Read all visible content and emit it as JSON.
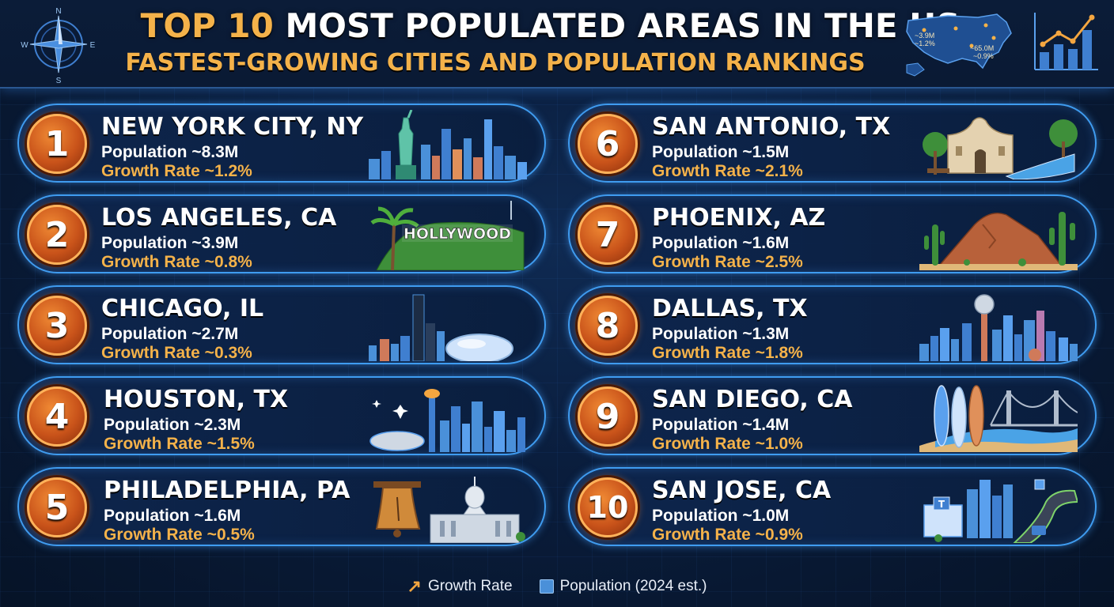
{
  "header": {
    "title_accent": "TOP 10",
    "title_rest": " MOST POPULATED AREAS IN THE US:",
    "subtitle": "FASTEST-GROWING CITIES AND POPULATION RANKINGS",
    "compass": {
      "n": "N",
      "s": "S",
      "e": "E",
      "w": "W"
    },
    "map_labels": {
      "left_pop": "~3.9M",
      "left_growth": "~1.2%",
      "right_pop": "~65.0M",
      "right_growth": "~0.9%"
    },
    "icons": [
      "compass-icon",
      "us-map-icon",
      "bar-chart-icon"
    ]
  },
  "cities": [
    {
      "rank": "1",
      "name": "NEW YORK CITY, NY",
      "population": "Population ~8.3M",
      "growth": "Growth Rate ~1.2%",
      "icon": "statue-of-liberty-skyline-icon"
    },
    {
      "rank": "2",
      "name": "LOS ANGELES, CA",
      "population": "Population ~3.9M",
      "growth": "Growth Rate ~0.8%",
      "icon": "hollywood-sign-icon",
      "sign_text": "HOLLYWOOD"
    },
    {
      "rank": "3",
      "name": "CHICAGO, IL",
      "population": "Population ~2.7M",
      "growth": "Growth Rate ~0.3%",
      "icon": "chicago-bean-skyline-icon"
    },
    {
      "rank": "4",
      "name": "HOUSTON, TX",
      "population": "Population ~2.3M",
      "growth": "Growth Rate ~1.5%",
      "icon": "houston-skyline-icon"
    },
    {
      "rank": "5",
      "name": "PHILADELPHIA, PA",
      "population": "Population ~1.6M",
      "growth": "Growth Rate ~0.5%",
      "icon": "liberty-bell-capitol-icon"
    },
    {
      "rank": "6",
      "name": "SAN ANTONIO, TX",
      "population": "Population ~1.5M",
      "growth": "Growth Rate ~2.1%",
      "icon": "alamo-riverwalk-icon"
    },
    {
      "rank": "7",
      "name": "PHOENIX, AZ",
      "population": "Population ~1.6M",
      "growth": "Growth Rate ~2.5%",
      "icon": "desert-cactus-icon"
    },
    {
      "rank": "8",
      "name": "DALLAS, TX",
      "population": "Population ~1.3M",
      "growth": "Growth Rate ~1.8%",
      "icon": "reunion-tower-skyline-icon"
    },
    {
      "rank": "9",
      "name": "SAN DIEGO, CA",
      "population": "Population ~1.4M",
      "growth": "Growth Rate ~1.0%",
      "icon": "surfboards-bridge-icon"
    },
    {
      "rank": "10",
      "name": "SAN JOSE, CA",
      "population": "Population ~1.0M",
      "growth": "Growth Rate ~0.9%",
      "icon": "tech-campus-highway-icon"
    }
  ],
  "legend": {
    "growth_label": "Growth Rate",
    "population_label": "Population (2024 est.)"
  },
  "colors": {
    "accent_orange": "#f4b24a",
    "card_border": "#3f9cf0",
    "rank_badge": "#c9531a",
    "background": "#0a1d3c"
  }
}
